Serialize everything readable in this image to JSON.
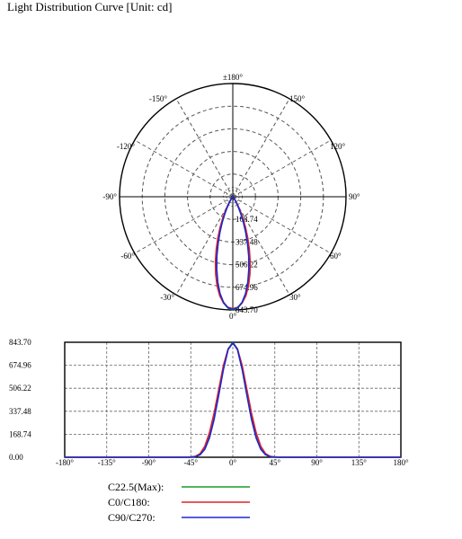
{
  "title": "Light Distribution Curve [Unit: cd]",
  "colors": {
    "C22.5(Max)": "#1a9a2a",
    "C0/C180": "#e0202a",
    "C90/C270": "#1a2ad0",
    "grid": "#555555"
  },
  "chart_data": [
    {
      "type": "polar",
      "angle_labels": {
        "top": "±180°",
        "bottom": "0°",
        "left_upper_150": "-150°",
        "right_upper_150": "150°",
        "left_120": "-120°",
        "right_120": "120°",
        "left_90": "-90°",
        "right_90": "90°",
        "left_60": "-60°",
        "right_60": "60°",
        "left_30": "-30°",
        "right_30": "30°"
      },
      "radial_labels": [
        "168.74",
        "337.48",
        "506.22",
        "674.96",
        "843.70"
      ],
      "rmax": 843.7,
      "grid": true,
      "series": [
        {
          "name": "C22.5(Max)",
          "angles_deg": [
            0,
            2.5,
            5,
            7.5,
            10,
            12.5,
            15,
            17.5,
            20,
            22.5,
            25,
            27.5,
            30,
            32.5,
            35,
            37.5,
            40,
            42.5,
            45,
            50
          ],
          "values": [
            843.7,
            830,
            795,
            735,
            655,
            565,
            470,
            375,
            290,
            215,
            150,
            100,
            62,
            36,
            20,
            10,
            5,
            2,
            1,
            0
          ]
        },
        {
          "name": "C0/C180",
          "angles_deg": [
            0,
            2.5,
            5,
            7.5,
            10,
            12.5,
            15,
            17.5,
            20,
            22.5,
            25,
            27.5,
            30,
            32.5,
            35,
            37.5,
            40,
            42.5,
            45,
            50
          ],
          "values": [
            835,
            825,
            795,
            745,
            675,
            590,
            500,
            410,
            325,
            248,
            180,
            125,
            80,
            48,
            27,
            14,
            7,
            3,
            1,
            0
          ]
        },
        {
          "name": "C90/C270",
          "angles_deg": [
            0,
            2.5,
            5,
            7.5,
            10,
            12.5,
            15,
            17.5,
            20,
            22.5,
            25,
            27.5,
            30,
            32.5,
            35,
            37.5,
            40,
            42.5,
            45,
            50
          ],
          "values": [
            840,
            828,
            790,
            728,
            645,
            552,
            458,
            362,
            278,
            205,
            142,
            94,
            58,
            33,
            18,
            9,
            4,
            2,
            1,
            0
          ]
        }
      ]
    },
    {
      "type": "line",
      "ylabels": [
        "843.70",
        "674.96",
        "506.22",
        "337.48",
        "168.74",
        "0.00"
      ],
      "xlabels": [
        "-180°",
        "-135°",
        "-90°",
        "-45°",
        "0°",
        "45°",
        "90°",
        "135°",
        "180°"
      ],
      "xlim": [
        -180,
        180
      ],
      "ylim": [
        0,
        843.7
      ],
      "grid": true,
      "series": [
        {
          "name": "C22.5(Max)",
          "x": [
            -180,
            -90,
            -50,
            -45,
            -40,
            -35,
            -30,
            -25,
            -20,
            -15,
            -10,
            -5,
            0,
            5,
            10,
            15,
            20,
            25,
            30,
            35,
            40,
            45,
            50,
            90,
            180
          ],
          "values": [
            0,
            0,
            0,
            1,
            5,
            20,
            62,
            150,
            290,
            470,
            655,
            795,
            843.7,
            795,
            655,
            470,
            290,
            150,
            62,
            20,
            5,
            1,
            0,
            0,
            0
          ]
        },
        {
          "name": "C0/C180",
          "x": [
            -180,
            -90,
            -50,
            -45,
            -40,
            -35,
            -30,
            -25,
            -20,
            -15,
            -10,
            -5,
            0,
            5,
            10,
            15,
            20,
            25,
            30,
            35,
            40,
            45,
            50,
            90,
            180
          ],
          "values": [
            0,
            0,
            0,
            1,
            7,
            27,
            80,
            180,
            325,
            500,
            675,
            795,
            835,
            795,
            675,
            500,
            325,
            180,
            80,
            27,
            7,
            1,
            0,
            0,
            0
          ]
        },
        {
          "name": "C90/C270",
          "x": [
            -180,
            -90,
            -50,
            -45,
            -40,
            -35,
            -30,
            -25,
            -20,
            -15,
            -10,
            -5,
            0,
            5,
            10,
            15,
            20,
            25,
            30,
            35,
            40,
            45,
            50,
            90,
            180
          ],
          "values": [
            0,
            0,
            0,
            1,
            4,
            18,
            58,
            142,
            278,
            458,
            645,
            790,
            840,
            790,
            645,
            458,
            278,
            142,
            58,
            18,
            4,
            1,
            0,
            0,
            0
          ]
        }
      ]
    }
  ],
  "legend": [
    {
      "label": "C22.5(Max):",
      "series": "C22.5(Max)"
    },
    {
      "label": "C0/C180:",
      "series": "C0/C180"
    },
    {
      "label": "C90/C270:",
      "series": "C90/C270"
    }
  ]
}
